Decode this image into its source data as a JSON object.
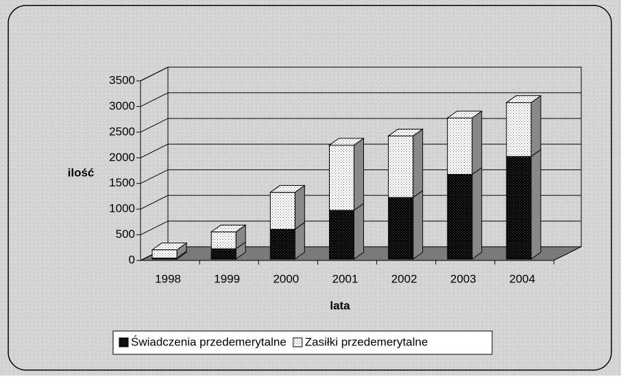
{
  "chart_data": {
    "type": "bar3d_stacked",
    "categories": [
      "1998",
      "1999",
      "2000",
      "2001",
      "2002",
      "2003",
      "2004"
    ],
    "series": [
      {
        "name": "Świadczenia przedemerytalne",
        "color": "#000000",
        "values": [
          20,
          200,
          580,
          950,
          1200,
          1650,
          2000
        ]
      },
      {
        "name": "Zasiłki przedemerytalne",
        "color": "#ffffff",
        "values": [
          160,
          330,
          720,
          1270,
          1200,
          1100,
          1050
        ]
      }
    ],
    "ylabel": "ilość",
    "xlabel": "lata",
    "ylim": [
      0,
      3500
    ],
    "yticks": [
      0,
      500,
      1000,
      1500,
      2000,
      2500,
      3000,
      3500
    ],
    "grid": true,
    "legend": "bottom"
  }
}
